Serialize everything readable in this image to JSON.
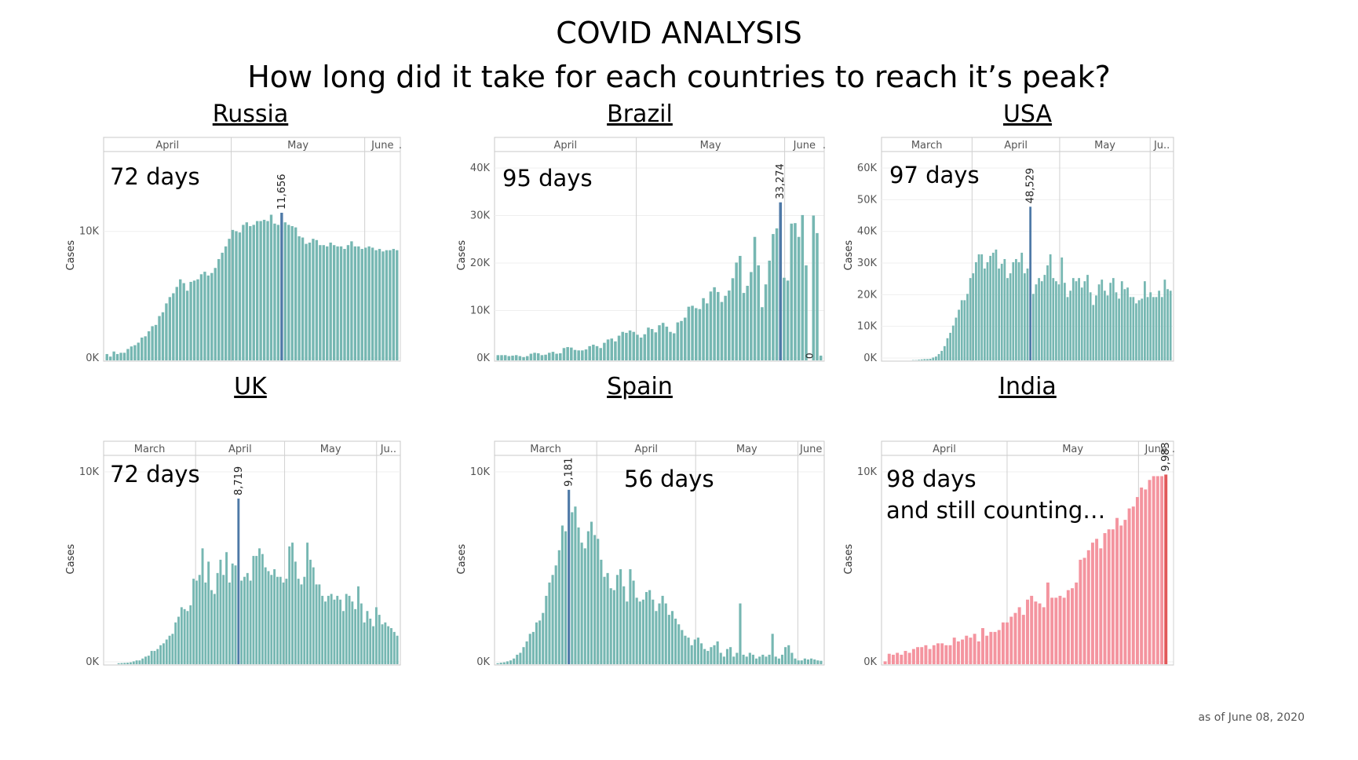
{
  "header": {
    "title": "COVID ANALYSIS",
    "subtitle": "How long did it take for each countries to reach it’s peak?"
  },
  "footnote": "as of June 08, 2020",
  "colors": {
    "bar": "#76b7b2",
    "peak": "#4e79a7",
    "india_bar": "#f4949f",
    "india_peak": "#e15759"
  },
  "chart_data": [
    {
      "type": "bar",
      "country": "Russia",
      "days_label": "72 days",
      "ylabel": "Cases",
      "yticks": [
        0,
        10000
      ],
      "ytick_labels": [
        "0K",
        "10K"
      ],
      "ylim": [
        0,
        15000
      ],
      "months": [
        "April",
        "May",
        "June",
        "."
      ],
      "peak_index": 50,
      "peak_label": "11,656",
      "values": [
        500,
        300,
        700,
        500,
        600,
        600,
        900,
        1100,
        1200,
        1400,
        1800,
        1900,
        2300,
        2700,
        2800,
        3500,
        3800,
        4500,
        5000,
        5300,
        5800,
        6400,
        6100,
        5500,
        6200,
        6300,
        6400,
        6800,
        7000,
        6700,
        6900,
        7300,
        8000,
        8500,
        9000,
        9600,
        10300,
        10200,
        10100,
        10700,
        10900,
        10600,
        10700,
        11000,
        11000,
        11100,
        11000,
        11500,
        10800,
        10700,
        11656,
        10900,
        10700,
        10600,
        10500,
        9800,
        9700,
        9200,
        9300,
        9600,
        9500,
        9100,
        9100,
        9000,
        9300,
        9100,
        9000,
        9000,
        8800,
        9100,
        9400,
        9000,
        9000,
        8800,
        8900,
        9000,
        8900,
        8700,
        8800,
        8600,
        8700,
        8700,
        8800,
        8700
      ]
    },
    {
      "type": "bar",
      "country": "Brazil",
      "days_label": "95 days",
      "ylabel": "Cases",
      "yticks": [
        0,
        10000,
        20000,
        30000,
        40000
      ],
      "ytick_labels": [
        "0K",
        "10K",
        "20K",
        "30K",
        "40K"
      ],
      "ylim": [
        0,
        40000
      ],
      "months": [
        "April",
        "May",
        "June",
        "."
      ],
      "peak_index": 77,
      "peak_label": "33,274",
      "zero_label": "0",
      "values": [
        1100,
        1100,
        1100,
        900,
        1000,
        1100,
        900,
        700,
        900,
        1400,
        1600,
        1500,
        1100,
        1200,
        1600,
        1800,
        1400,
        1500,
        2600,
        2800,
        2700,
        2200,
        2100,
        2100,
        2300,
        3000,
        3300,
        3000,
        2600,
        3700,
        4400,
        4600,
        4000,
        5200,
        6000,
        5800,
        6300,
        6000,
        5400,
        4800,
        5500,
        6900,
        6600,
        5900,
        7400,
        7900,
        7100,
        6000,
        5700,
        8000,
        8300,
        9000,
        11300,
        11500,
        11000,
        10800,
        13100,
        12000,
        14500,
        15400,
        14400,
        12300,
        13600,
        14700,
        17300,
        20600,
        22000,
        14200,
        15700,
        18600,
        26000,
        20000,
        11200,
        16000,
        21000,
        26600,
        27800,
        33274,
        17400,
        16800,
        28800,
        28900,
        26000,
        30600,
        20000,
        0,
        30500,
        26800,
        1000
      ]
    },
    {
      "type": "bar",
      "country": "USA",
      "days_label": "97 days",
      "ylabel": "Cases",
      "yticks": [
        0,
        10000,
        20000,
        30000,
        40000,
        50000,
        60000
      ],
      "ytick_labels": [
        "0K",
        "10K",
        "20K",
        "30K",
        "40K",
        "50K",
        "60K"
      ],
      "ylim": [
        0,
        60000
      ],
      "months": [
        "March",
        "April",
        "May",
        "Ju.."
      ],
      "peak_index": 51,
      "peak_label": "48,529",
      "values": [
        0,
        0,
        0,
        0,
        0,
        0,
        0,
        0,
        0,
        0,
        100,
        100,
        200,
        300,
        400,
        400,
        500,
        900,
        1200,
        2000,
        3000,
        4500,
        7000,
        8700,
        11000,
        13500,
        16000,
        19000,
        19000,
        21000,
        26000,
        27500,
        31000,
        33500,
        33500,
        29000,
        31000,
        33000,
        34000,
        35000,
        29000,
        30500,
        32000,
        26000,
        27500,
        31000,
        32000,
        31000,
        34000,
        27500,
        29000,
        48529,
        21000,
        24000,
        26000,
        25000,
        27000,
        30000,
        33500,
        26000,
        25000,
        24000,
        32500,
        24500,
        20000,
        22000,
        26000,
        25000,
        26000,
        23000,
        25000,
        27000,
        21500,
        17500,
        20500,
        24000,
        25500,
        22000,
        20500,
        24500,
        26000,
        21500,
        19500,
        25000,
        22500,
        23000,
        20000,
        20000,
        18000,
        19000,
        19500,
        25000,
        20000,
        21500,
        20000,
        20000,
        22000,
        20000,
        25500,
        22500,
        22000
      ]
    },
    {
      "type": "bar",
      "country": "UK",
      "days_label": "72 days",
      "ylabel": "Cases",
      "yticks": [
        0,
        10000
      ],
      "ytick_labels": [
        "0K",
        "10K"
      ],
      "ylim": [
        0,
        10000
      ],
      "months": [
        "March",
        "April",
        "May",
        "Ju.."
      ],
      "peak_index": 44,
      "peak_label": "8,719",
      "values": [
        0,
        0,
        0,
        0,
        50,
        60,
        70,
        80,
        100,
        150,
        200,
        200,
        300,
        400,
        450,
        700,
        700,
        800,
        1000,
        1100,
        1300,
        1500,
        1600,
        2200,
        2500,
        3000,
        2900,
        2800,
        3100,
        4500,
        4400,
        4700,
        6100,
        4300,
        5400,
        3900,
        3700,
        4800,
        5500,
        4700,
        5900,
        4300,
        5300,
        5200,
        8719,
        4400,
        4600,
        4800,
        4400,
        5700,
        5700,
        6100,
        5800,
        5100,
        4900,
        4700,
        5000,
        4600,
        4600,
        4300,
        4500,
        6200,
        6400,
        5400,
        4500,
        4200,
        4600,
        6400,
        5500,
        5100,
        4200,
        4200,
        3600,
        3300,
        3600,
        3700,
        3400,
        3600,
        3400,
        2800,
        3700,
        3600,
        3300,
        2900,
        4100,
        3200,
        2200,
        2800,
        2400,
        2000,
        3000,
        2600,
        2100,
        2200,
        2000,
        1900,
        1700,
        1500
      ]
    },
    {
      "type": "bar",
      "country": "Spain",
      "days_label": "56 days",
      "ylabel": "Cases",
      "yticks": [
        0,
        10000
      ],
      "ytick_labels": [
        "0K",
        "10K"
      ],
      "ylim": [
        0,
        10000
      ],
      "months": [
        "March",
        "April",
        "May",
        "June"
      ],
      "peak_index": 22,
      "peak_label": "9,181",
      "values": [
        50,
        80,
        100,
        150,
        200,
        300,
        500,
        600,
        900,
        1200,
        1600,
        1700,
        2200,
        2300,
        2700,
        3600,
        4300,
        4700,
        5200,
        6000,
        7300,
        7000,
        9181,
        8000,
        8300,
        7200,
        6400,
        6100,
        7000,
        7500,
        6800,
        6600,
        5500,
        4600,
        4800,
        4000,
        3900,
        4700,
        5000,
        4100,
        3300,
        5000,
        4400,
        3500,
        3300,
        3400,
        3800,
        3900,
        3400,
        2800,
        3200,
        3600,
        3200,
        2600,
        2800,
        2400,
        2100,
        1800,
        1500,
        1400,
        1000,
        1300,
        1400,
        1100,
        800,
        700,
        900,
        1000,
        1200,
        600,
        400,
        800,
        900,
        400,
        600,
        3200,
        500,
        400,
        600,
        500,
        300,
        400,
        500,
        400,
        500,
        1600,
        400,
        300,
        500,
        900,
        1000,
        600,
        300,
        200,
        200,
        300,
        250,
        300,
        250,
        200,
        180
      ]
    },
    {
      "type": "bar",
      "country": "India",
      "days_label": "98 days",
      "days_sub": "and still counting…",
      "ylabel": "Cases",
      "yticks": [
        0,
        10000
      ],
      "ytick_labels": [
        "0K",
        "10K"
      ],
      "ylim": [
        0,
        10000
      ],
      "months": [
        "April",
        "May",
        "June",
        "."
      ],
      "peak_index": 69,
      "peak_label": "9,983",
      "values": [
        150,
        550,
        500,
        600,
        500,
        700,
        600,
        800,
        900,
        900,
        1000,
        800,
        1000,
        1100,
        1100,
        1000,
        1000,
        1400,
        1200,
        1300,
        1500,
        1400,
        1600,
        1200,
        1900,
        1500,
        1700,
        1700,
        1800,
        2200,
        2200,
        2500,
        2700,
        3000,
        2600,
        3400,
        3600,
        3300,
        3200,
        3000,
        4300,
        3500,
        3500,
        3600,
        3500,
        3900,
        4000,
        4300,
        5500,
        5600,
        6000,
        6400,
        6600,
        6100,
        6900,
        7100,
        7100,
        7700,
        7300,
        7600,
        8200,
        8300,
        8800,
        9300,
        9200,
        9700,
        9900,
        9900,
        9900,
        9983,
        0
      ]
    }
  ]
}
